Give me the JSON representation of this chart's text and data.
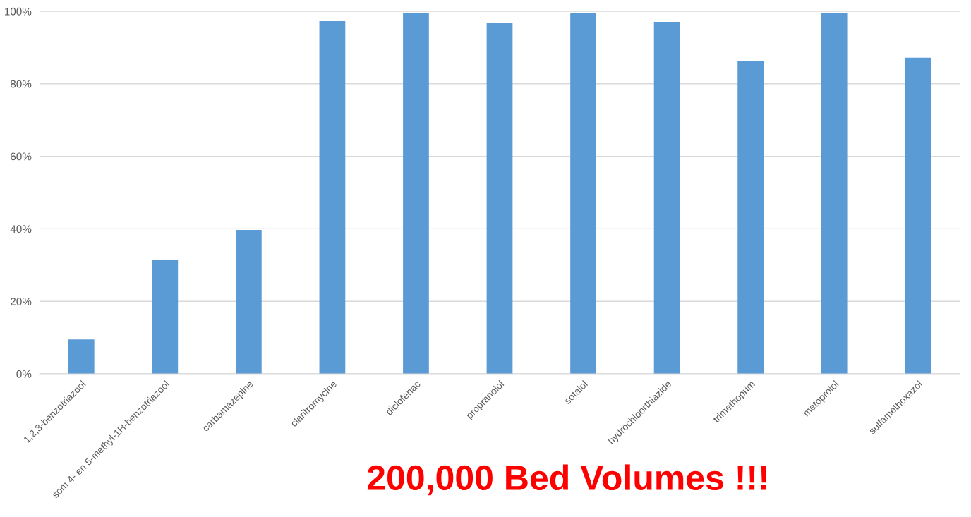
{
  "chart_data": {
    "type": "bar",
    "categories": [
      "1,2,3-benzotriazool",
      "som 4- en 5-methyl-1H-benzotriazool",
      "carbamazepine",
      "claritromycine",
      "diclofenac",
      "propranolol",
      "sotalol",
      "hydrochloorthiazide",
      "trimethoprim",
      "metoprolol",
      "sulfamethoxazol"
    ],
    "values": [
      9.5,
      31.5,
      39.7,
      97.3,
      99.4,
      96.9,
      99.6,
      97.1,
      86.2,
      99.4,
      87.2
    ],
    "color": "#5b9bd5",
    "ylim": [
      0,
      100
    ],
    "yticks": [
      {
        "value": 0,
        "label": "0%"
      },
      {
        "value": 20,
        "label": "20%"
      },
      {
        "value": 40,
        "label": "40%"
      },
      {
        "value": 60,
        "label": "60%"
      },
      {
        "value": 80,
        "label": "80%"
      },
      {
        "value": 100,
        "label": "100%"
      }
    ],
    "grid": "y",
    "annotations": [
      "200,000 Bed Volumes !!!"
    ]
  }
}
